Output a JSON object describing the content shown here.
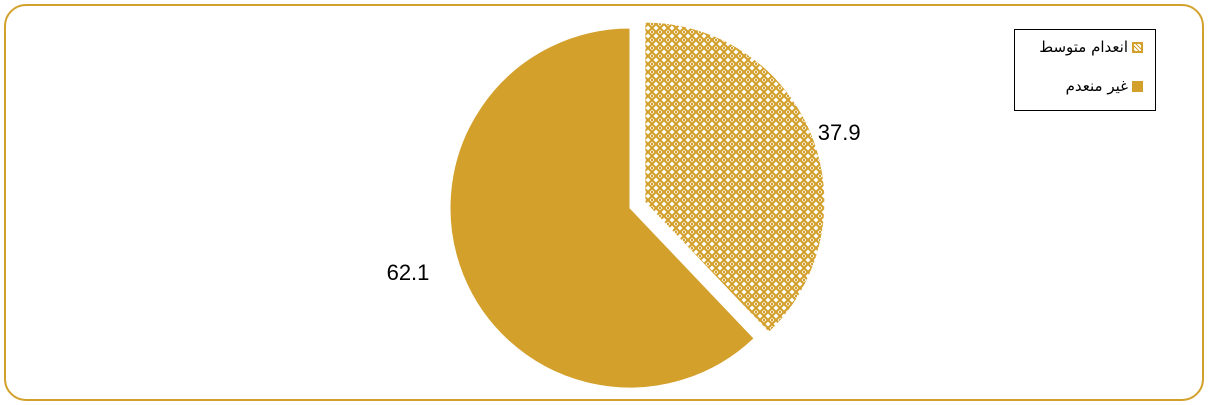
{
  "chart_data": {
    "type": "pie",
    "title": "",
    "slices": [
      {
        "label": "انعدام متوسط",
        "value": 37.9,
        "color": "#D4A02C",
        "pattern": "lattice"
      },
      {
        "label": "غير منعدم",
        "value": 62.1,
        "color": "#D4A02C",
        "pattern": "solid"
      }
    ],
    "data_labels": [
      "37.9",
      "62.1"
    ],
    "legend_position": "top-right",
    "exploded_slice": "انعدام متوسط"
  }
}
